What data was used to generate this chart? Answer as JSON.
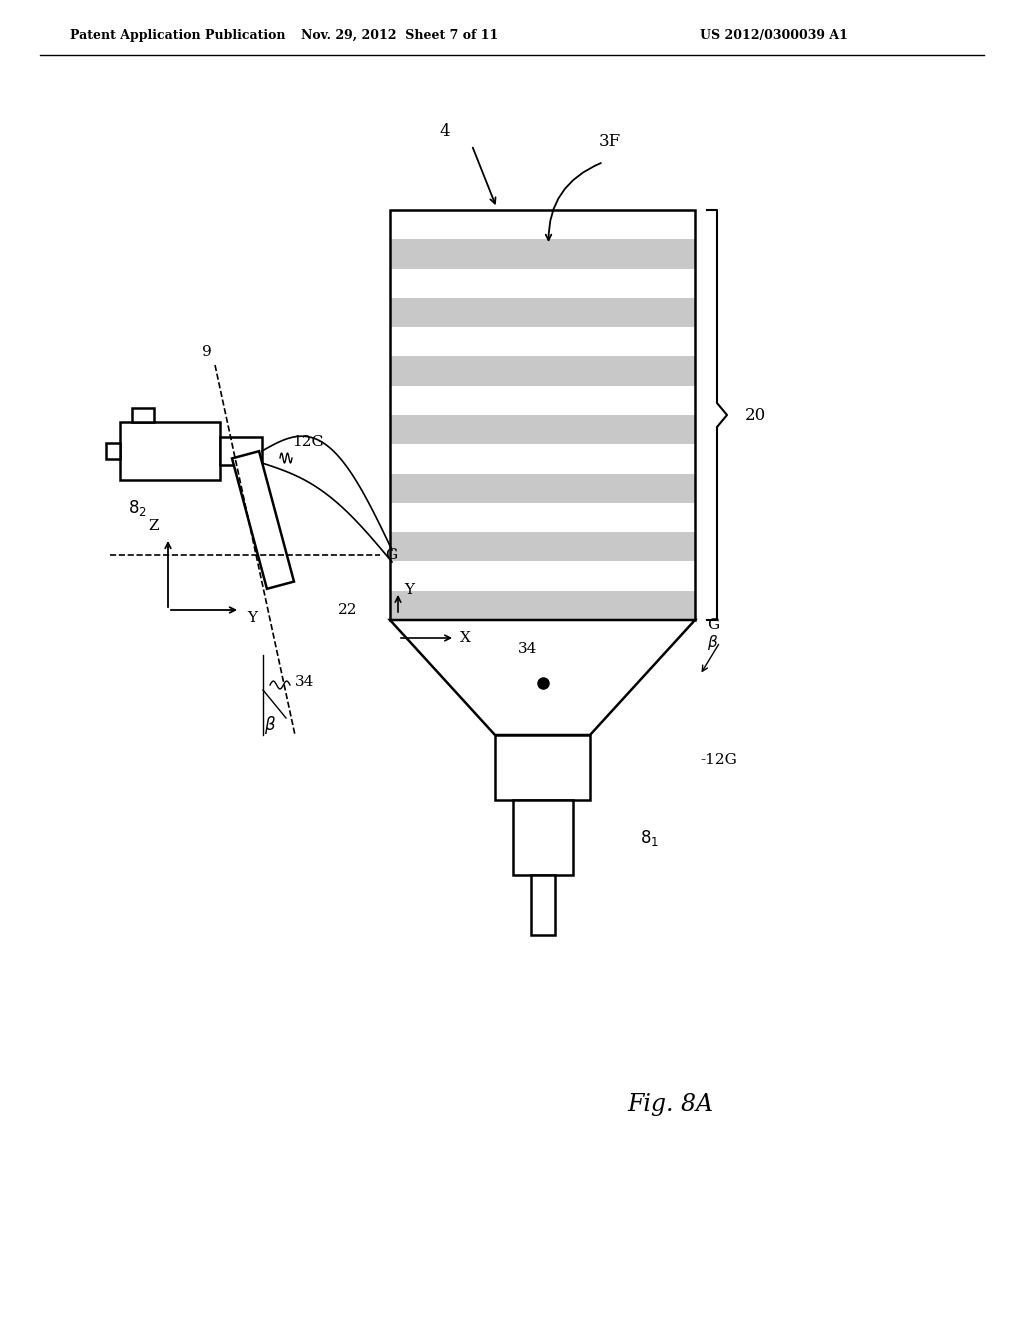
{
  "bg_color": "#ffffff",
  "header_left": "Patent Application Publication",
  "header_mid": "Nov. 29, 2012  Sheet 7 of 11",
  "header_right": "US 2012/0300039 A1",
  "fig_label": "Fig. 8A",
  "line_color": "#000000",
  "stripe_color": "#c8c8c8",
  "stripe_white": "#ffffff"
}
